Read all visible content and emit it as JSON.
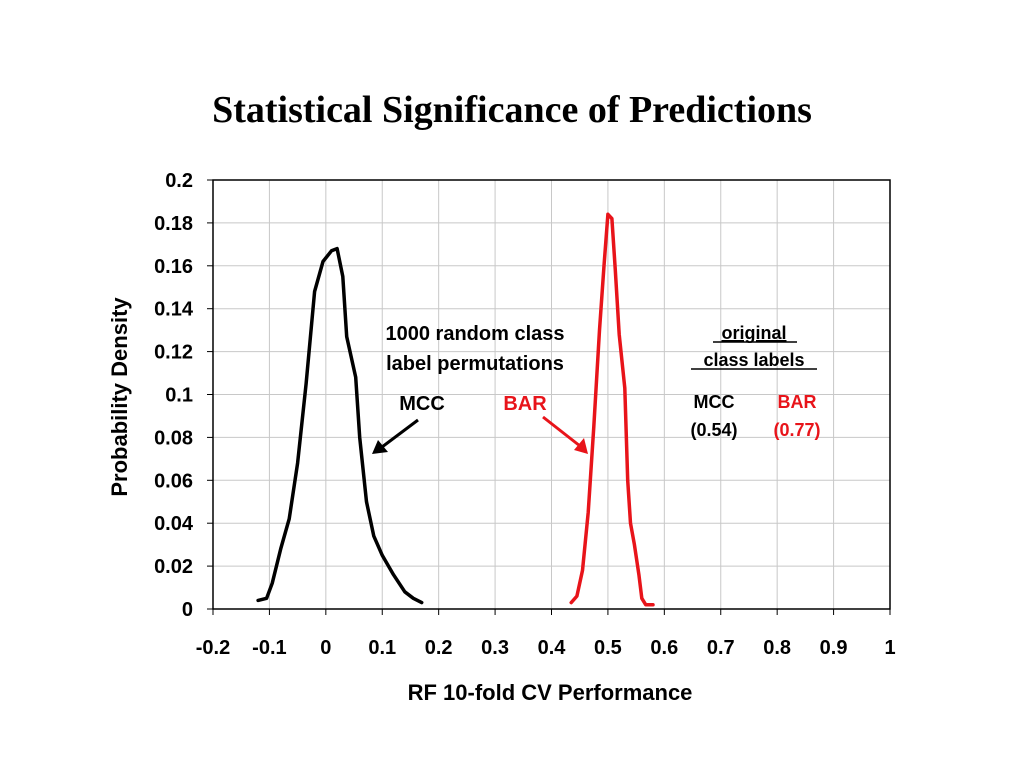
{
  "chart_data": {
    "type": "line",
    "title": "Statistical Significance of Predictions",
    "xlabel": "RF 10-fold CV Performance",
    "ylabel": "Probability Density",
    "xlim": [
      -0.2,
      1
    ],
    "ylim": [
      0,
      0.2
    ],
    "x_ticks": [
      "-0.2",
      "-0.1",
      "0",
      "0.1",
      "0.2",
      "0.3",
      "0.4",
      "0.5",
      "0.6",
      "0.7",
      "0.8",
      "0.9",
      "1"
    ],
    "y_ticks": [
      "0",
      "0.02",
      "0.04",
      "0.06",
      "0.08",
      "0.1",
      "0.12",
      "0.14",
      "0.16",
      "0.18",
      "0.2"
    ],
    "grid": true,
    "series": [
      {
        "name": "MCC",
        "color": "#000000",
        "points": [
          [
            -0.12,
            0.004
          ],
          [
            -0.105,
            0.005
          ],
          [
            -0.095,
            0.012
          ],
          [
            -0.08,
            0.028
          ],
          [
            -0.065,
            0.042
          ],
          [
            -0.05,
            0.068
          ],
          [
            -0.035,
            0.105
          ],
          [
            -0.02,
            0.148
          ],
          [
            -0.005,
            0.162
          ],
          [
            0.01,
            0.167
          ],
          [
            0.02,
            0.168
          ],
          [
            0.03,
            0.155
          ],
          [
            0.037,
            0.127
          ],
          [
            0.053,
            0.108
          ],
          [
            0.06,
            0.08
          ],
          [
            0.072,
            0.05
          ],
          [
            0.085,
            0.034
          ],
          [
            0.1,
            0.025
          ],
          [
            0.12,
            0.016
          ],
          [
            0.14,
            0.008
          ],
          [
            0.155,
            0.005
          ],
          [
            0.17,
            0.003
          ]
        ]
      },
      {
        "name": "BAR",
        "color": "#e8141a",
        "points": [
          [
            0.435,
            0.003
          ],
          [
            0.445,
            0.006
          ],
          [
            0.455,
            0.018
          ],
          [
            0.465,
            0.045
          ],
          [
            0.475,
            0.085
          ],
          [
            0.485,
            0.13
          ],
          [
            0.493,
            0.16
          ],
          [
            0.5,
            0.184
          ],
          [
            0.507,
            0.182
          ],
          [
            0.513,
            0.158
          ],
          [
            0.52,
            0.128
          ],
          [
            0.53,
            0.103
          ],
          [
            0.535,
            0.06
          ],
          [
            0.54,
            0.04
          ],
          [
            0.547,
            0.03
          ],
          [
            0.555,
            0.016
          ],
          [
            0.56,
            0.005
          ],
          [
            0.567,
            0.002
          ],
          [
            0.58,
            0.002
          ]
        ]
      }
    ],
    "annotations": {
      "permutations_line1": "1000 random class",
      "permutations_line2": "label permutations",
      "mcc_label": "MCC",
      "bar_label": "BAR",
      "original_line1": "original",
      "original_line2": "class labels",
      "orig_mcc_label": "MCC",
      "orig_mcc_value": "(0.54)",
      "orig_bar_label": "BAR",
      "orig_bar_value": "(0.77)"
    }
  }
}
